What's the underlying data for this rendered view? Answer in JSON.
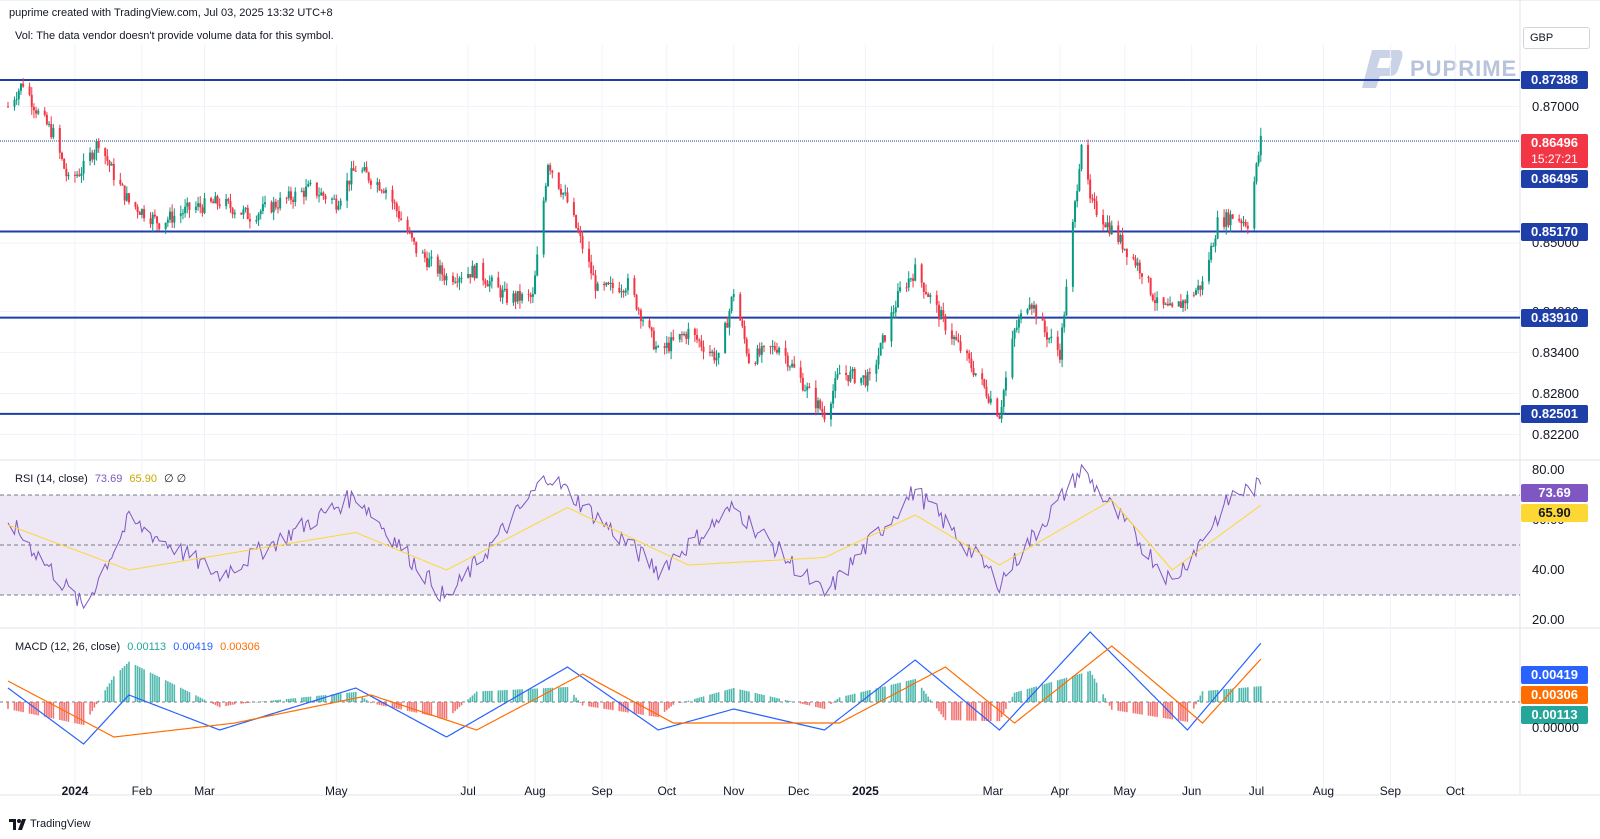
{
  "header": {
    "created_line": "puprime created with TradingView.com, Jul 03, 2025 13:32 UTC+8",
    "vol_note": "Vol: The data vendor doesn't provide volume data for this symbol.",
    "currency": "GBP"
  },
  "brand": {
    "logo_text": "PUPRIME",
    "footer": "TradingView"
  },
  "price_axis": [
    "0.87000",
    "0.85000",
    "0.84000",
    "0.83400",
    "0.82800",
    "0.82200"
  ],
  "levels": [
    {
      "label": "0.87388",
      "value": 0.87388
    },
    {
      "label": "0.85170",
      "value": 0.8517
    },
    {
      "label": "0.83910",
      "value": 0.8391
    },
    {
      "label": "0.82501",
      "value": 0.82501
    }
  ],
  "current": {
    "price": "0.86496",
    "countdown": "15:27:21",
    "prev_line": "0.86495"
  },
  "time_axis": [
    {
      "label": "2024",
      "bold": true
    },
    {
      "label": "Feb",
      "bold": false
    },
    {
      "label": "Mar",
      "bold": false
    },
    {
      "label": "May",
      "bold": false
    },
    {
      "label": "Jul",
      "bold": false
    },
    {
      "label": "Aug",
      "bold": false
    },
    {
      "label": "Sep",
      "bold": false
    },
    {
      "label": "Oct",
      "bold": false
    },
    {
      "label": "Nov",
      "bold": false
    },
    {
      "label": "Dec",
      "bold": false
    },
    {
      "label": "2025",
      "bold": true
    },
    {
      "label": "Mar",
      "bold": false
    },
    {
      "label": "Apr",
      "bold": false
    },
    {
      "label": "May",
      "bold": false
    },
    {
      "label": "Jun",
      "bold": false
    },
    {
      "label": "Jul",
      "bold": false
    },
    {
      "label": "Aug",
      "bold": false
    },
    {
      "label": "Sep",
      "bold": false
    },
    {
      "label": "Oct",
      "bold": false
    }
  ],
  "rsi": {
    "title": "RSI (14, close)",
    "value": "73.69",
    "ma_value": "65.90",
    "extra": "∅ ∅",
    "axis": [
      "80.00",
      "60.00",
      "40.00",
      "20.00"
    ],
    "colors": {
      "line": "#7e57c2",
      "ma": "#fdd835",
      "band": "#ede7f6"
    }
  },
  "macd": {
    "title": "MACD (12, 26, close)",
    "hist_value": "0.00113",
    "macd_value": "0.00419",
    "signal_value": "0.00306",
    "axis": [
      "0.00000"
    ],
    "colors": {
      "macd": "#2962ff",
      "signal": "#ff6d00",
      "hist_pos": "#26a69a",
      "hist_neg": "#ef5350"
    }
  },
  "colors": {
    "up": "#089981",
    "down": "#f23645",
    "level": "#1e3ea8",
    "current": "#f23645"
  },
  "chart_data": [
    {
      "type": "candlestick",
      "title": "",
      "ylim": [
        0.819,
        0.879
      ],
      "x_start": "2023-12-01",
      "x_end": "2025-10-31",
      "anchors": [
        [
          "2023-12-01",
          0.87
        ],
        [
          "2023-12-08",
          0.8735
        ],
        [
          "2023-12-15",
          0.869
        ],
        [
          "2023-12-22",
          0.866
        ],
        [
          "2023-12-29",
          0.859
        ],
        [
          "2024-01-05",
          0.861
        ],
        [
          "2024-01-12",
          0.865
        ],
        [
          "2024-01-19",
          0.86
        ],
        [
          "2024-01-26",
          0.856
        ],
        [
          "2024-02-09",
          0.853
        ],
        [
          "2024-02-23",
          0.855
        ],
        [
          "2024-03-08",
          0.856
        ],
        [
          "2024-03-22",
          0.854
        ],
        [
          "2024-04-05",
          0.856
        ],
        [
          "2024-04-19",
          0.858
        ],
        [
          "2024-05-01",
          0.856
        ],
        [
          "2024-05-10",
          0.861
        ],
        [
          "2024-05-24",
          0.858
        ],
        [
          "2024-06-07",
          0.849
        ],
        [
          "2024-06-21",
          0.845
        ],
        [
          "2024-07-05",
          0.846
        ],
        [
          "2024-07-19",
          0.842
        ],
        [
          "2024-07-31",
          0.842
        ],
        [
          "2024-08-07",
          0.862
        ],
        [
          "2024-08-16",
          0.856
        ],
        [
          "2024-08-30",
          0.843
        ],
        [
          "2024-09-13",
          0.844
        ],
        [
          "2024-09-27",
          0.834
        ],
        [
          "2024-10-11",
          0.837
        ],
        [
          "2024-10-25",
          0.833
        ],
        [
          "2024-11-01",
          0.843
        ],
        [
          "2024-11-08",
          0.833
        ],
        [
          "2024-11-22",
          0.835
        ],
        [
          "2024-12-06",
          0.828
        ],
        [
          "2024-12-13",
          0.825
        ],
        [
          "2024-12-20",
          0.831
        ],
        [
          "2025-01-03",
          0.83
        ],
        [
          "2025-01-17",
          0.843
        ],
        [
          "2025-01-24",
          0.846
        ],
        [
          "2025-02-07",
          0.838
        ],
        [
          "2025-02-21",
          0.831
        ],
        [
          "2025-03-04",
          0.825
        ],
        [
          "2025-03-11",
          0.837
        ],
        [
          "2025-03-18",
          0.842
        ],
        [
          "2025-03-25",
          0.837
        ],
        [
          "2025-04-01",
          0.834
        ],
        [
          "2025-04-04",
          0.843
        ],
        [
          "2025-04-11",
          0.865
        ],
        [
          "2025-04-15",
          0.856
        ],
        [
          "2025-04-25",
          0.852
        ],
        [
          "2025-05-09",
          0.846
        ],
        [
          "2025-05-16",
          0.841
        ],
        [
          "2025-05-23",
          0.84
        ],
        [
          "2025-06-06",
          0.844
        ],
        [
          "2025-06-13",
          0.853
        ],
        [
          "2025-06-20",
          0.854
        ],
        [
          "2025-06-27",
          0.853
        ],
        [
          "2025-07-03",
          0.865
        ]
      ]
    },
    {
      "type": "line",
      "title": "RSI (14, close)",
      "ylim": [
        20,
        80
      ],
      "series": [
        {
          "name": "RSI",
          "points": [
            [
              "2023-12-01",
              60
            ],
            [
              "2024-01-05",
              25
            ],
            [
              "2024-01-26",
              60
            ],
            [
              "2024-03-08",
              38
            ],
            [
              "2024-05-10",
              70
            ],
            [
              "2024-06-21",
              28
            ],
            [
              "2024-08-07",
              78
            ],
            [
              "2024-09-27",
              40
            ],
            [
              "2024-11-01",
              65
            ],
            [
              "2024-12-13",
              30
            ],
            [
              "2025-01-24",
              72
            ],
            [
              "2025-03-04",
              35
            ],
            [
              "2025-04-11",
              80
            ],
            [
              "2025-05-23",
              35
            ],
            [
              "2025-06-20",
              70
            ],
            [
              "2025-07-03",
              73.69
            ]
          ]
        },
        {
          "name": "RSI-based MA",
          "points": [
            [
              "2023-12-01",
              58
            ],
            [
              "2024-01-26",
              40
            ],
            [
              "2024-05-10",
              55
            ],
            [
              "2024-06-21",
              40
            ],
            [
              "2024-08-16",
              65
            ],
            [
              "2024-10-11",
              42
            ],
            [
              "2024-12-13",
              45
            ],
            [
              "2025-01-24",
              62
            ],
            [
              "2025-03-04",
              42
            ],
            [
              "2025-04-25",
              68
            ],
            [
              "2025-05-23",
              40
            ],
            [
              "2025-07-03",
              65.9
            ]
          ]
        }
      ]
    },
    {
      "type": "line",
      "title": "MACD (12, 26, close)",
      "ylim": [
        -0.0045,
        0.0055
      ],
      "series": [
        {
          "name": "MACD",
          "points": [
            [
              "2023-12-01",
              0.001
            ],
            [
              "2024-01-05",
              -0.003
            ],
            [
              "2024-01-26",
              0.0005
            ],
            [
              "2024-03-08",
              -0.002
            ],
            [
              "2024-05-10",
              0.001
            ],
            [
              "2024-06-21",
              -0.0025
            ],
            [
              "2024-08-16",
              0.0025
            ],
            [
              "2024-09-27",
              -0.002
            ],
            [
              "2024-11-01",
              -0.0005
            ],
            [
              "2024-12-13",
              -0.002
            ],
            [
              "2025-01-24",
              0.003
            ],
            [
              "2025-03-04",
              -0.002
            ],
            [
              "2025-04-15",
              0.005
            ],
            [
              "2025-05-30",
              -0.002
            ],
            [
              "2025-07-03",
              0.00419
            ]
          ]
        },
        {
          "name": "Signal",
          "points": [
            [
              "2023-12-01",
              0.0015
            ],
            [
              "2024-01-19",
              -0.0025
            ],
            [
              "2024-03-15",
              -0.0015
            ],
            [
              "2024-05-17",
              0.0005
            ],
            [
              "2024-07-05",
              -0.002
            ],
            [
              "2024-08-23",
              0.002
            ],
            [
              "2024-10-04",
              -0.0015
            ],
            [
              "2024-12-20",
              -0.0015
            ],
            [
              "2025-02-07",
              0.0025
            ],
            [
              "2025-03-11",
              -0.0015
            ],
            [
              "2025-04-25",
              0.004
            ],
            [
              "2025-06-06",
              -0.0015
            ],
            [
              "2025-07-03",
              0.00306
            ]
          ]
        }
      ]
    }
  ]
}
